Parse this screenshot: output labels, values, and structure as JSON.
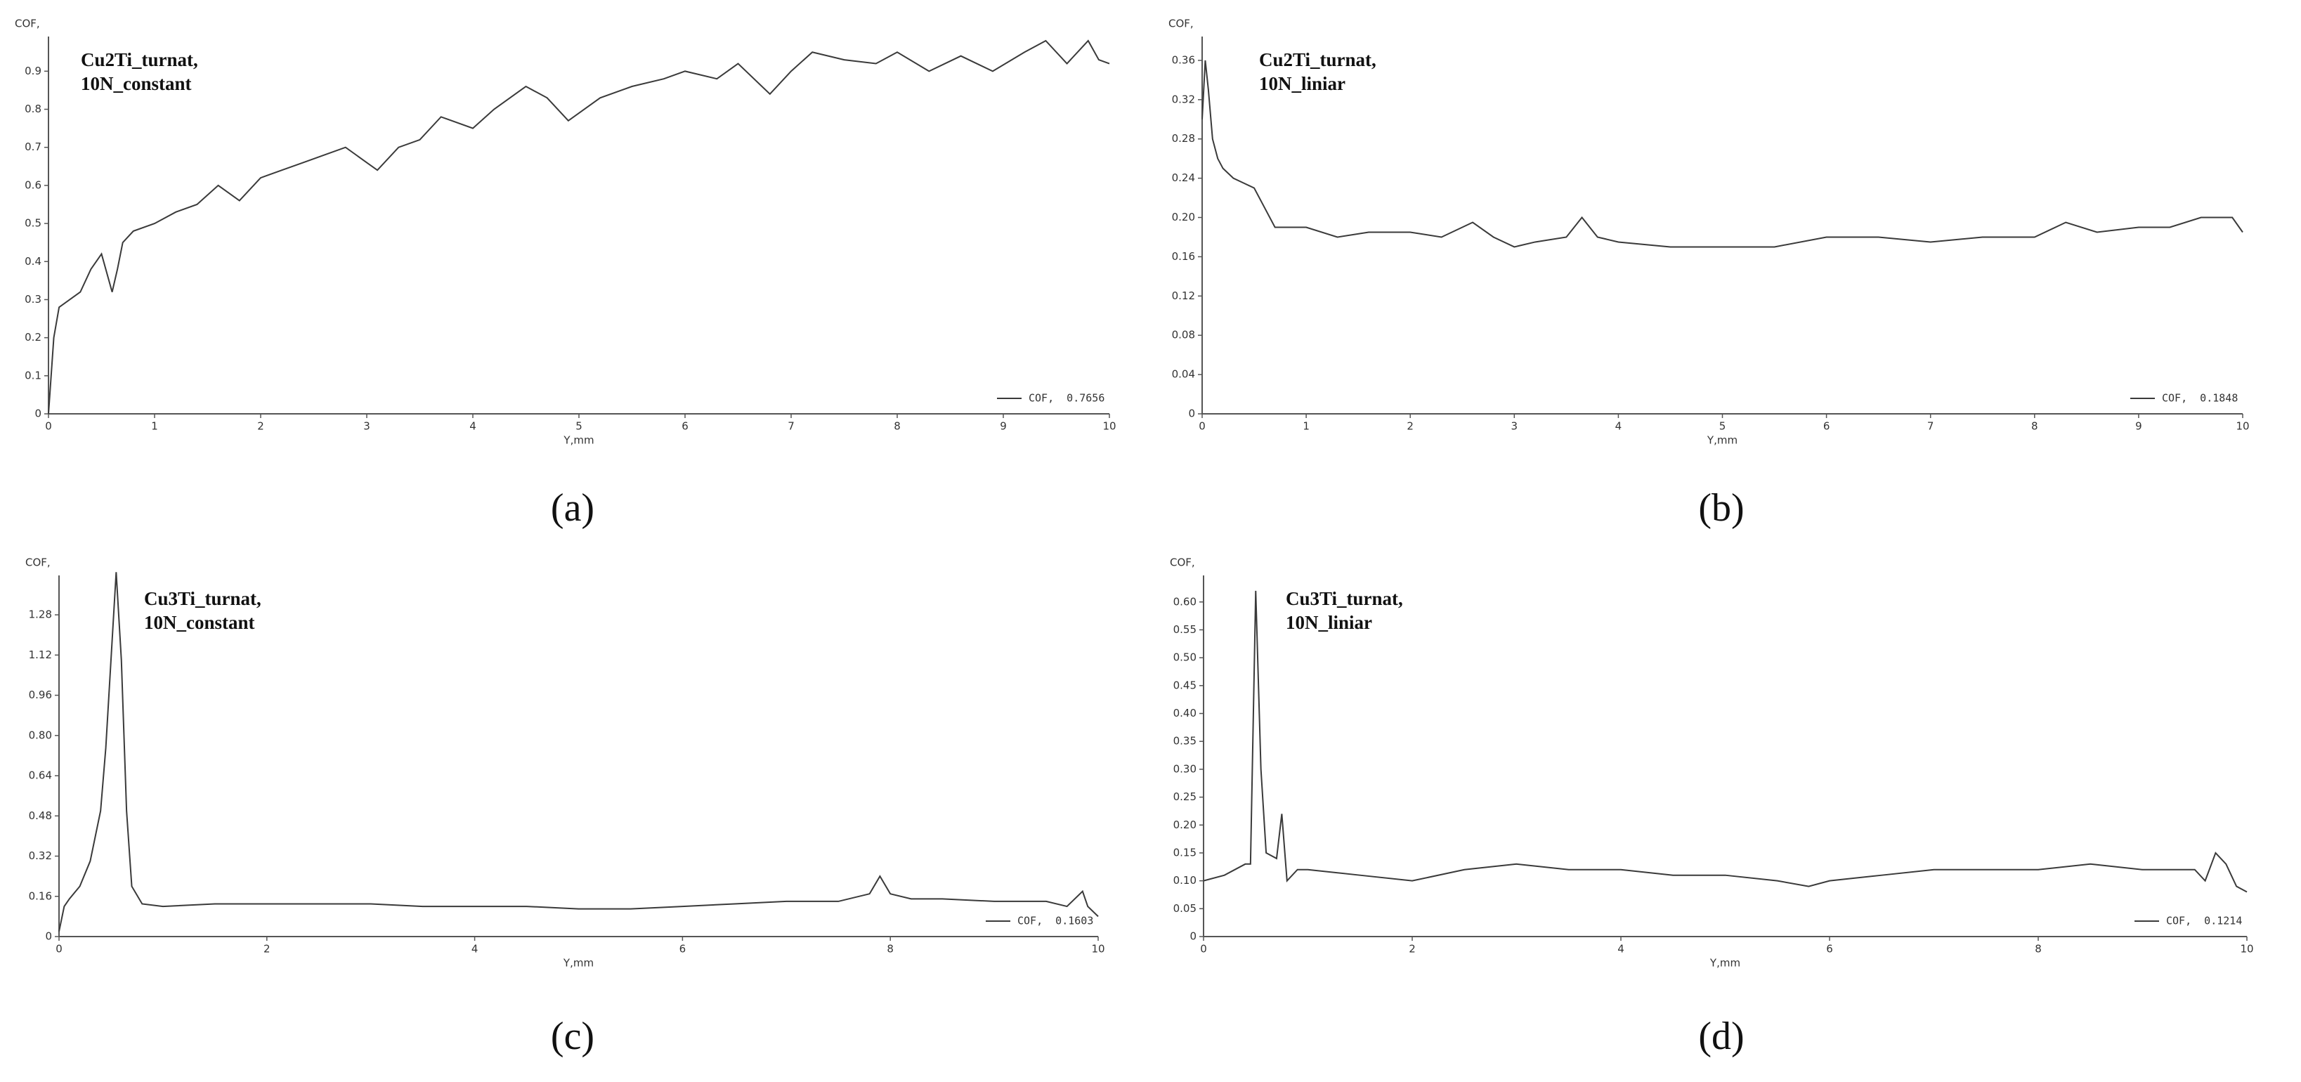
{
  "chart_data": [
    {
      "type": "line",
      "panel_label": "(a)",
      "annotation": [
        "Cu2Ti_turnat,",
        "10N_constant"
      ],
      "ylabel": "COF,",
      "xlabel": "Y,mm",
      "x": [
        0,
        0.05,
        0.1,
        0.2,
        0.3,
        0.4,
        0.5,
        0.6,
        0.65,
        0.7,
        0.8,
        1,
        1.2,
        1.4,
        1.6,
        1.8,
        2,
        2.2,
        2.4,
        2.6,
        2.8,
        3,
        3.1,
        3.3,
        3.5,
        3.7,
        4,
        4.2,
        4.5,
        4.7,
        4.9,
        5.2,
        5.5,
        5.8,
        6,
        6.3,
        6.5,
        6.8,
        7,
        7.2,
        7.5,
        7.8,
        8,
        8.3,
        8.6,
        8.9,
        9.2,
        9.4,
        9.6,
        9.8,
        9.9,
        10
      ],
      "series": [
        {
          "name": "COF,  0.7656",
          "color": "#3a3a3a",
          "values": [
            0,
            0.2,
            0.28,
            0.3,
            0.32,
            0.38,
            0.42,
            0.32,
            0.38,
            0.45,
            0.48,
            0.5,
            0.53,
            0.55,
            0.6,
            0.56,
            0.62,
            0.64,
            0.66,
            0.68,
            0.7,
            0.66,
            0.64,
            0.7,
            0.72,
            0.78,
            0.75,
            0.8,
            0.86,
            0.83,
            0.77,
            0.83,
            0.86,
            0.88,
            0.9,
            0.88,
            0.92,
            0.84,
            0.9,
            0.95,
            0.93,
            0.92,
            0.95,
            0.9,
            0.94,
            0.9,
            0.95,
            0.98,
            0.92,
            0.98,
            0.93,
            0.92
          ]
        }
      ],
      "xlim": [
        0,
        10
      ],
      "xticks": [
        0,
        1,
        2,
        3,
        4,
        5,
        6,
        7,
        8,
        9,
        10
      ],
      "ylim": [
        0,
        0.98
      ],
      "yticks": [
        0,
        0.1,
        0.2,
        0.3,
        0.4,
        0.5,
        0.6,
        0.7,
        0.8,
        0.9
      ],
      "grid": false
    },
    {
      "type": "line",
      "panel_label": "(b)",
      "annotation": [
        "Cu2Ti_turnat,",
        "10N_liniar"
      ],
      "ylabel": "COF,",
      "xlabel": "Y,mm",
      "x": [
        0,
        0.03,
        0.06,
        0.1,
        0.15,
        0.2,
        0.3,
        0.4,
        0.5,
        0.6,
        0.7,
        0.8,
        1,
        1.3,
        1.6,
        2,
        2.3,
        2.6,
        2.8,
        3,
        3.2,
        3.5,
        3.65,
        3.8,
        4,
        4.5,
        5,
        5.5,
        6,
        6.5,
        7,
        7.5,
        8,
        8.3,
        8.6,
        9,
        9.3,
        9.6,
        9.9,
        10
      ],
      "series": [
        {
          "name": "COF,  0.1848",
          "color": "#3a3a3a",
          "values": [
            0.3,
            0.36,
            0.33,
            0.28,
            0.26,
            0.25,
            0.24,
            0.235,
            0.23,
            0.21,
            0.19,
            0.19,
            0.19,
            0.18,
            0.185,
            0.185,
            0.18,
            0.195,
            0.18,
            0.17,
            0.175,
            0.18,
            0.2,
            0.18,
            0.175,
            0.17,
            0.17,
            0.17,
            0.18,
            0.18,
            0.175,
            0.18,
            0.18,
            0.195,
            0.185,
            0.19,
            0.19,
            0.2,
            0.2,
            0.185
          ]
        }
      ],
      "xlim": [
        0,
        10
      ],
      "xticks": [
        0,
        1,
        2,
        3,
        4,
        5,
        6,
        7,
        8,
        9,
        10
      ],
      "ylim": [
        0,
        0.38
      ],
      "yticks": [
        0,
        0.04,
        0.08,
        0.12,
        0.16,
        {
          "value": 0.2,
          "label": "0.20"
        },
        0.24,
        0.28,
        0.32,
        0.36
      ],
      "grid": false
    },
    {
      "type": "line",
      "panel_label": "(c)",
      "annotation": [
        "Cu3Ti_turnat,",
        "10N_constant"
      ],
      "ylabel": "COF,",
      "xlabel": "Y,mm",
      "x": [
        0,
        0.05,
        0.1,
        0.2,
        0.3,
        0.4,
        0.45,
        0.5,
        0.55,
        0.6,
        0.65,
        0.7,
        0.8,
        1,
        1.5,
        2,
        2.5,
        3,
        3.5,
        4,
        4.5,
        5,
        5.5,
        6,
        6.5,
        7,
        7.5,
        7.8,
        7.9,
        8,
        8.2,
        8.5,
        9,
        9.5,
        9.7,
        9.85,
        9.9,
        10
      ],
      "series": [
        {
          "name": "COF,  0.1603",
          "color": "#3a3a3a",
          "values": [
            0.02,
            0.12,
            0.15,
            0.2,
            0.3,
            0.5,
            0.75,
            1.1,
            1.45,
            1.1,
            0.5,
            0.2,
            0.13,
            0.12,
            0.13,
            0.13,
            0.13,
            0.13,
            0.12,
            0.12,
            0.12,
            0.11,
            0.11,
            0.12,
            0.13,
            0.14,
            0.14,
            0.17,
            0.24,
            0.17,
            0.15,
            0.15,
            0.14,
            0.14,
            0.12,
            0.18,
            0.12,
            0.08
          ]
        }
      ],
      "xlim": [
        0,
        10
      ],
      "xticks": [
        0,
        2,
        4,
        6,
        8,
        10
      ],
      "ylim": [
        0,
        1.42
      ],
      "yticks": [
        0,
        0.16,
        0.32,
        0.48,
        0.64,
        {
          "value": 0.8,
          "label": "0.80"
        },
        0.96,
        1.12,
        1.28
      ],
      "grid": false
    },
    {
      "type": "line",
      "panel_label": "(d)",
      "annotation": [
        "Cu3Ti_turnat,",
        "10N_liniar"
      ],
      "ylabel": "COF,",
      "xlabel": "Y,mm",
      "x": [
        0,
        0.2,
        0.4,
        0.45,
        0.5,
        0.55,
        0.6,
        0.7,
        0.75,
        0.8,
        0.9,
        1,
        1.5,
        2,
        2.5,
        3,
        3.5,
        4,
        4.5,
        5,
        5.5,
        5.8,
        6,
        6.5,
        7,
        7.5,
        8,
        8.5,
        9,
        9.5,
        9.6,
        9.7,
        9.8,
        9.9,
        10
      ],
      "series": [
        {
          "name": "COF,  0.1214",
          "color": "#3a3a3a",
          "values": [
            0.1,
            0.11,
            0.13,
            0.13,
            0.62,
            0.3,
            0.15,
            0.14,
            0.22,
            0.1,
            0.12,
            0.12,
            0.11,
            0.1,
            0.12,
            0.13,
            0.12,
            0.12,
            0.11,
            0.11,
            0.1,
            0.09,
            0.1,
            0.11,
            0.12,
            0.12,
            0.12,
            0.13,
            0.12,
            0.12,
            0.1,
            0.15,
            0.13,
            0.09,
            0.08
          ]
        }
      ],
      "xlim": [
        0,
        10
      ],
      "xticks": [
        0,
        2,
        4,
        6,
        8,
        10
      ],
      "ylim": [
        0,
        0.64
      ],
      "yticks": [
        0,
        0.05,
        {
          "value": 0.1,
          "label": "0.10"
        },
        0.15,
        {
          "value": 0.2,
          "label": "0.20"
        },
        0.25,
        {
          "value": 0.3,
          "label": "0.30"
        },
        0.35,
        {
          "value": 0.4,
          "label": "0.40"
        },
        0.45,
        {
          "value": 0.5,
          "label": "0.50"
        },
        0.55,
        {
          "value": 0.6,
          "label": "0.60"
        }
      ],
      "grid": false
    }
  ]
}
